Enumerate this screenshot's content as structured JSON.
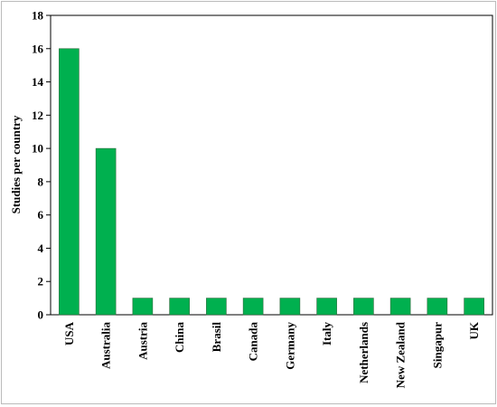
{
  "chart_data": {
    "type": "bar",
    "y_label": "Studies per country",
    "categories": [
      "USA",
      "Australia",
      "Austria",
      "China",
      "Brasil",
      "Canada",
      "Germany",
      "Italy",
      "Netherlands",
      "New Zealand",
      "Singapur",
      "UK"
    ],
    "values": [
      16,
      10,
      1,
      1,
      1,
      1,
      1,
      1,
      1,
      1,
      1,
      1
    ],
    "color": "#00b04f",
    "ylim": [
      0,
      18
    ],
    "yticks": [
      0,
      2,
      4,
      6,
      8,
      10,
      12,
      14,
      16,
      18
    ]
  }
}
